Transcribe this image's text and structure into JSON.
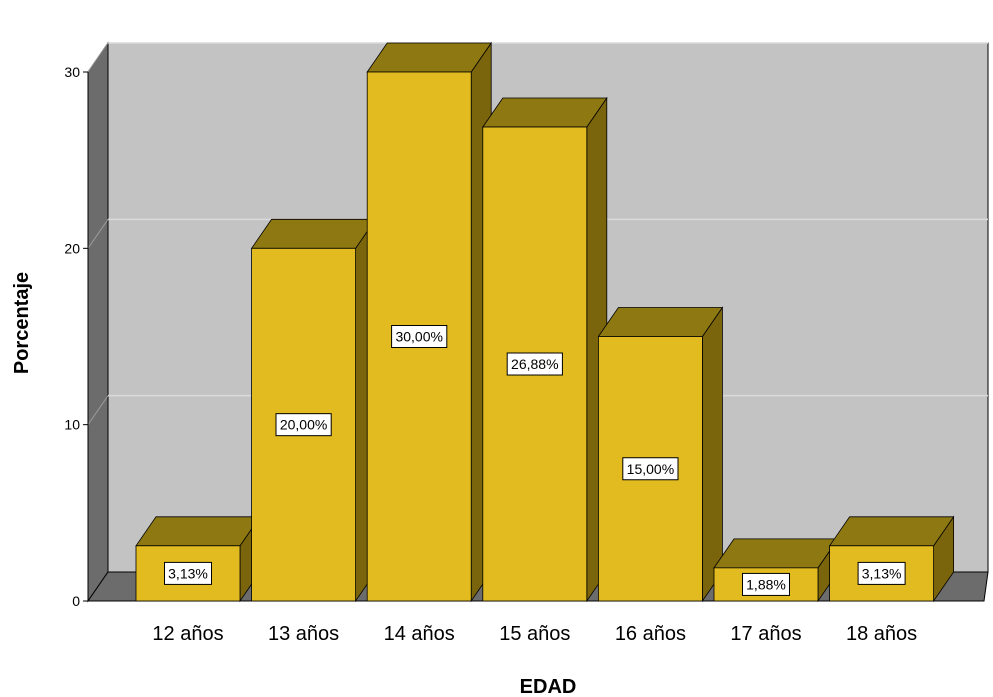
{
  "chart_data": {
    "type": "bar",
    "style": "3d",
    "title": "",
    "xlabel": "EDAD",
    "ylabel": "Porcentaje",
    "categories": [
      "12 años",
      "13 años",
      "14 años",
      "15 años",
      "16 años",
      "17 años",
      "18 años"
    ],
    "values": [
      3.13,
      20.0,
      30.0,
      26.88,
      15.0,
      1.88,
      3.13
    ],
    "data_labels": [
      "3,13%",
      "20,00%",
      "30,00%",
      "26,88%",
      "15,00%",
      "1,88%",
      "3,13%"
    ],
    "yticks": [
      "0",
      "10",
      "20",
      "30"
    ],
    "ylim": [
      0,
      30
    ],
    "grid": true,
    "colors": {
      "bar_front": "#E1BB1F",
      "bar_top": "#8E7812",
      "bar_side": "#7A650C",
      "plot_back": "#C3C3C3",
      "floor": "#6C6C6C",
      "left_wall": "#6C6C6C",
      "gridline": "#DADADA"
    }
  }
}
